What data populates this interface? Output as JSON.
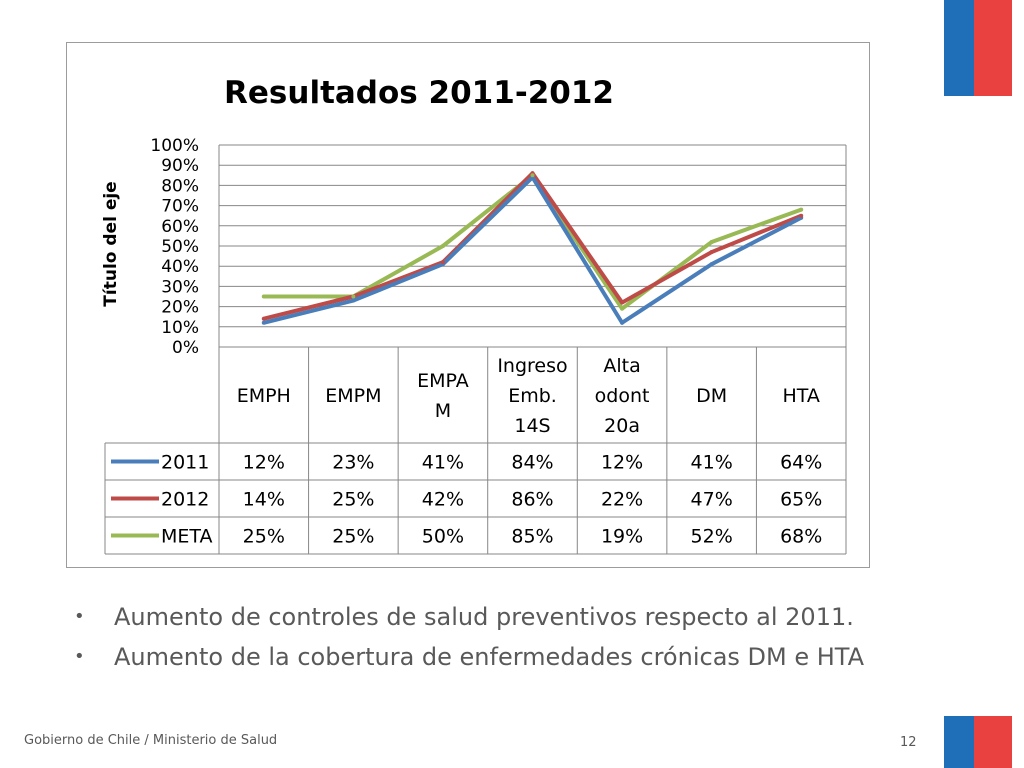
{
  "flag_colors": {
    "blue": "#1f6fb8",
    "red": "#e8413f"
  },
  "chart_data": {
    "type": "line",
    "title": "Resultados 2011-2012",
    "ylabel": "Título del eje",
    "xlabel": "",
    "ylim": [
      0,
      100
    ],
    "yticks": [
      "0%",
      "10%",
      "20%",
      "30%",
      "40%",
      "50%",
      "60%",
      "70%",
      "80%",
      "90%",
      "100%"
    ],
    "grid": true,
    "legend": "data-table",
    "categories": [
      [
        "EMPH"
      ],
      [
        "EMPM"
      ],
      [
        "EMPA",
        "M"
      ],
      [
        "Ingreso",
        "Emb.",
        "14S"
      ],
      [
        "Alta",
        "odont",
        "20a"
      ],
      [
        "DM"
      ],
      [
        "HTA"
      ]
    ],
    "series": [
      {
        "name": "2011",
        "color": "#4a7ebb",
        "values": [
          12,
          23,
          41,
          84,
          12,
          41,
          64
        ],
        "labels": [
          "12%",
          "23%",
          "41%",
          "84%",
          "12%",
          "41%",
          "64%"
        ]
      },
      {
        "name": "2012",
        "color": "#be4b48",
        "values": [
          14,
          25,
          42,
          86,
          22,
          47,
          65
        ],
        "labels": [
          "14%",
          "25%",
          "42%",
          "86%",
          "22%",
          "47%",
          "65%"
        ]
      },
      {
        "name": "META",
        "color": "#98b954",
        "values": [
          25,
          25,
          50,
          85,
          19,
          52,
          68
        ],
        "labels": [
          "25%",
          "25%",
          "50%",
          "85%",
          "19%",
          "52%",
          "68%"
        ]
      }
    ]
  },
  "bullets": [
    "Aumento de controles de salud preventivos respecto al 2011.",
    "Aumento de la cobertura de enfermedades crónicas DM e HTA"
  ],
  "footer": {
    "source": "Gobierno de Chile / Ministerio de Salud",
    "page_number": "12"
  }
}
